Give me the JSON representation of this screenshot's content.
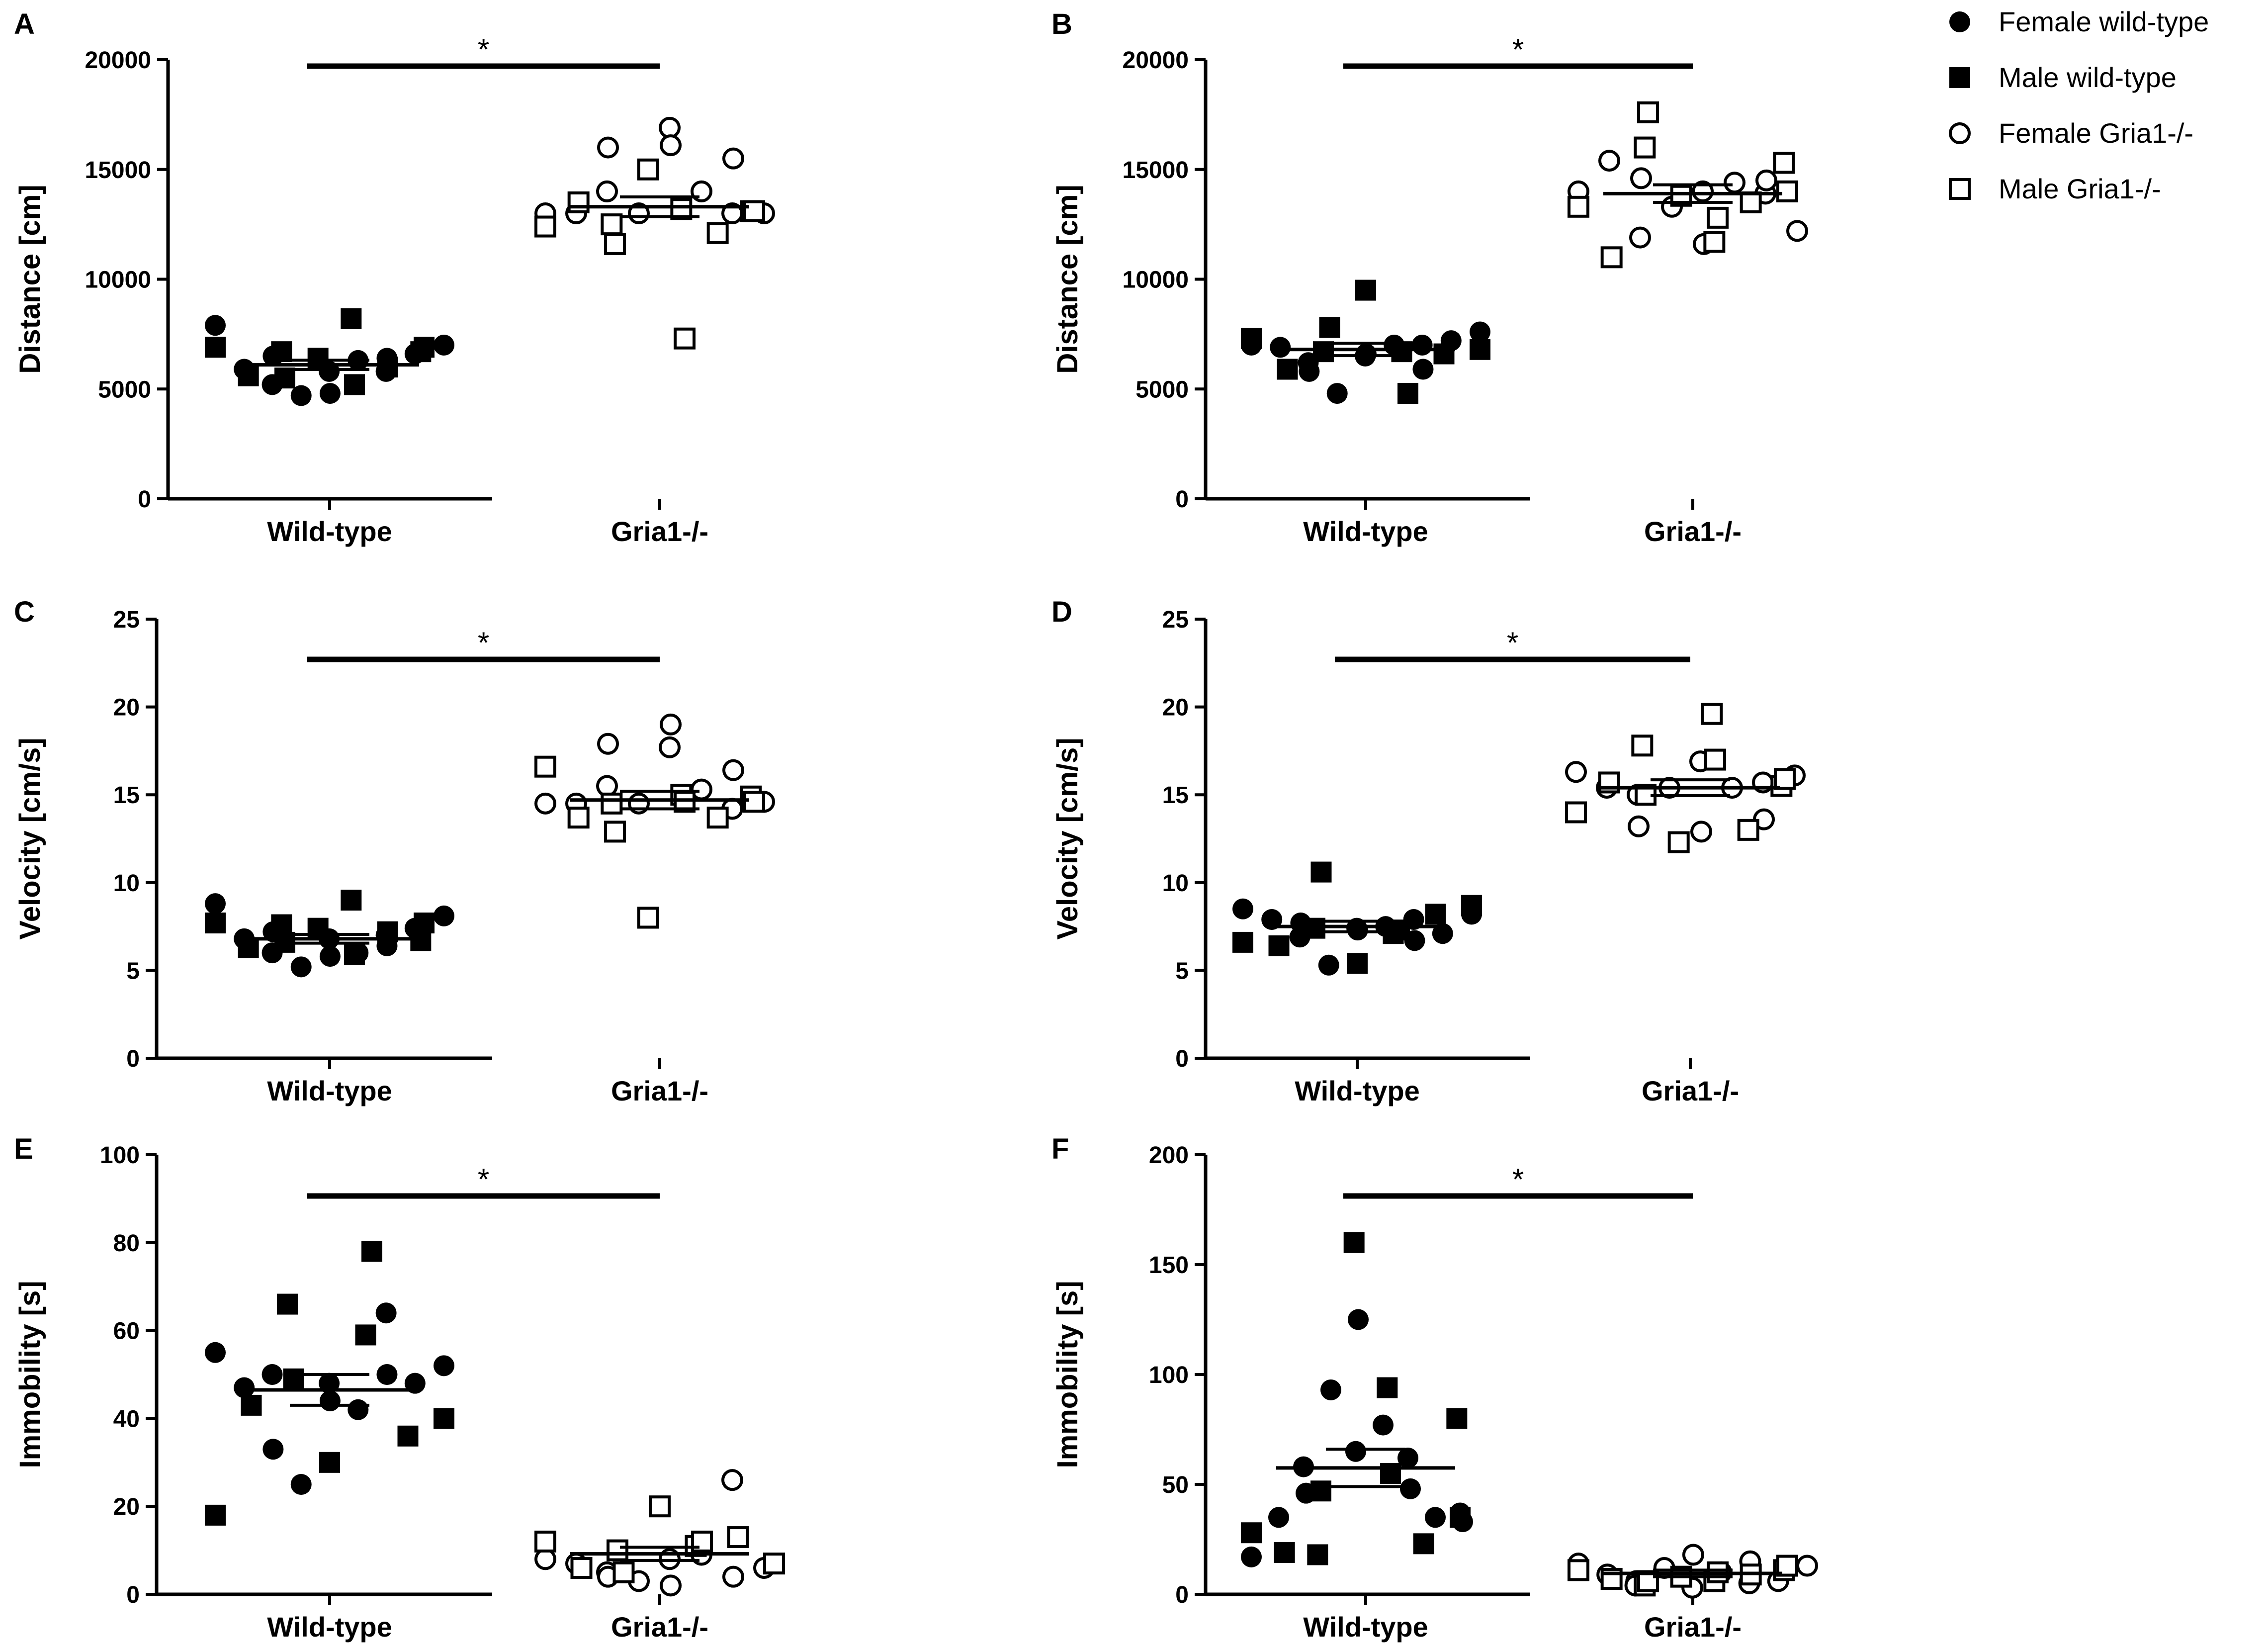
{
  "legend": {
    "items": [
      {
        "label": "Female wild-type",
        "marker": "circle",
        "filled": true
      },
      {
        "label": "Male wild-type",
        "marker": "square",
        "filled": true
      },
      {
        "label": "Female Gria1-/-",
        "marker": "circle",
        "filled": false
      },
      {
        "label": "Male Gria1-/-",
        "marker": "square",
        "filled": false
      }
    ]
  },
  "chart_data": [
    {
      "panel": "A",
      "type": "scatter",
      "ylabel": "Distance [cm]",
      "ylim": [
        0,
        20000
      ],
      "yticks": [
        0,
        5000,
        10000,
        15000,
        20000
      ],
      "yticklabels": [
        "0",
        "5000",
        "10000",
        "15000",
        "20000"
      ],
      "categories": [
        "Wild-type",
        "Gria1-/-"
      ],
      "significance": "*",
      "summary": [
        {
          "mean": 6100,
          "sem": 210
        },
        {
          "mean": 13300,
          "sem": 450
        }
      ],
      "series": [
        {
          "name": "Female wild-type",
          "group": 0,
          "values": [
            7900,
            5900,
            6500,
            5200,
            4700,
            4800,
            5800,
            6300,
            6400,
            5800,
            6600,
            7000
          ]
        },
        {
          "name": "Male wild-type",
          "group": 0,
          "values": [
            6900,
            5600,
            6700,
            5500,
            6400,
            8200,
            5200,
            6000,
            6700,
            6900
          ]
        },
        {
          "name": "Female Gria1-/-",
          "group": 1,
          "values": [
            13000,
            13000,
            14000,
            16000,
            13000,
            16900,
            16100,
            14000,
            13000,
            15500,
            13000
          ]
        },
        {
          "name": "Male Gria1-/-",
          "group": 1,
          "values": [
            12400,
            13500,
            12500,
            11600,
            15000,
            13200,
            7300,
            12100,
            13100,
            13100
          ]
        }
      ]
    },
    {
      "panel": "B",
      "type": "scatter",
      "ylabel": "Distance [cm]",
      "ylim": [
        0,
        20000
      ],
      "yticks": [
        0,
        5000,
        10000,
        15000,
        20000
      ],
      "yticklabels": [
        "0",
        "5000",
        "10000",
        "15000",
        "20000"
      ],
      "categories": [
        "Wild-type",
        "Gria1-/-"
      ],
      "significance": "*",
      "summary": [
        {
          "mean": 6800,
          "sem": 280
        },
        {
          "mean": 13900,
          "sem": 400
        }
      ],
      "series": [
        {
          "name": "Female wild-type",
          "group": 0,
          "values": [
            7000,
            6900,
            5800,
            6200,
            4800,
            6600,
            6500,
            7000,
            5900,
            7000,
            7200,
            7600
          ]
        },
        {
          "name": "Male wild-type",
          "group": 0,
          "values": [
            7300,
            5900,
            6700,
            7800,
            9500,
            6700,
            4800,
            6600,
            6800
          ]
        },
        {
          "name": "Female Gria1-/-",
          "group": 1,
          "values": [
            14000,
            15400,
            11900,
            14600,
            13300,
            14000,
            11600,
            14400,
            13900,
            14500,
            12200
          ]
        },
        {
          "name": "Male Gria1-/-",
          "group": 1,
          "values": [
            13300,
            11000,
            16000,
            17600,
            13800,
            11700,
            12800,
            13500,
            15300,
            14000
          ]
        }
      ]
    },
    {
      "panel": "C",
      "type": "scatter",
      "ylabel": "Velocity [cm/s]",
      "ylim": [
        0,
        25
      ],
      "yticks": [
        0,
        5,
        10,
        15,
        20,
        25
      ],
      "yticklabels": [
        "0",
        "5",
        "10",
        "15",
        "20",
        "25"
      ],
      "categories": [
        "Wild-type",
        "Gria1-/-"
      ],
      "significance": "*",
      "summary": [
        {
          "mean": 6.8,
          "sem": 0.25
        },
        {
          "mean": 14.7,
          "sem": 0.5
        }
      ],
      "series": [
        {
          "name": "Female wild-type",
          "group": 0,
          "values": [
            8.8,
            6.8,
            7.2,
            6.0,
            5.2,
            5.8,
            6.8,
            6.0,
            6.4,
            7.0,
            7.4,
            8.1
          ]
        },
        {
          "name": "Male wild-type",
          "group": 0,
          "values": [
            7.7,
            6.3,
            7.6,
            6.6,
            7.4,
            9.0,
            5.9,
            7.2,
            6.7,
            7.7
          ]
        },
        {
          "name": "Female Gria1-/-",
          "group": 1,
          "values": [
            14.5,
            14.5,
            15.5,
            17.9,
            14.5,
            17.7,
            19.0,
            15.3,
            14.2,
            16.4,
            14.6
          ]
        },
        {
          "name": "Male Gria1-/-",
          "group": 1,
          "values": [
            16.6,
            13.7,
            14.5,
            12.9,
            8.0,
            15.0,
            14.6,
            13.7,
            14.9,
            14.6
          ]
        }
      ]
    },
    {
      "panel": "D",
      "type": "scatter",
      "ylabel": "Velocity [cm/s]",
      "ylim": [
        0,
        25
      ],
      "yticks": [
        0,
        5,
        10,
        15,
        20,
        25
      ],
      "yticklabels": [
        "0",
        "5",
        "10",
        "15",
        "20",
        "25"
      ],
      "categories": [
        "Wild-type",
        "Gria1-/-"
      ],
      "significance": "*",
      "summary": [
        {
          "mean": 7.5,
          "sem": 0.3
        },
        {
          "mean": 15.4,
          "sem": 0.45
        }
      ],
      "series": [
        {
          "name": "Female wild-type",
          "group": 0,
          "values": [
            8.5,
            7.9,
            7.7,
            6.9,
            5.3,
            7.3,
            7.4,
            7.5,
            6.7,
            7.9,
            7.1,
            8.2
          ]
        },
        {
          "name": "Male wild-type",
          "group": 0,
          "values": [
            6.6,
            6.4,
            7.4,
            10.6,
            5.4,
            7.1,
            7.3,
            8.2,
            8.7
          ]
        },
        {
          "name": "Female Gria1-/-",
          "group": 1,
          "values": [
            16.3,
            15.4,
            15.0,
            13.2,
            15.4,
            16.9,
            12.9,
            15.4,
            15.7,
            13.6,
            16.1
          ]
        },
        {
          "name": "Male Gria1-/-",
          "group": 1,
          "values": [
            14.0,
            15.7,
            17.8,
            15.0,
            12.3,
            19.6,
            17.0,
            13.0,
            15.5,
            15.9
          ]
        }
      ]
    },
    {
      "panel": "E",
      "type": "scatter",
      "ylabel": "Immobility [s]",
      "ylim": [
        0,
        100
      ],
      "yticks": [
        0,
        20,
        40,
        60,
        80,
        100
      ],
      "yticklabels": [
        "0",
        "20",
        "40",
        "60",
        "80",
        "100"
      ],
      "categories": [
        "Wild-type",
        "Gria1-/-"
      ],
      "significance": "*",
      "summary": [
        {
          "mean": 46.5,
          "sem": 3.5
        },
        {
          "mean": 9.2,
          "sem": 1.5
        }
      ],
      "series": [
        {
          "name": "Female wild-type",
          "group": 0,
          "values": [
            55,
            47,
            33,
            50,
            25,
            44,
            48,
            42,
            50,
            64,
            48,
            52
          ]
        },
        {
          "name": "Male wild-type",
          "group": 0,
          "values": [
            18,
            43,
            66,
            49,
            30,
            59,
            78,
            36,
            40
          ]
        },
        {
          "name": "Female Gria1-/-",
          "group": 1,
          "values": [
            8,
            7,
            5,
            4,
            3,
            8,
            2,
            9,
            26,
            4,
            6
          ]
        },
        {
          "name": "Male Gria1-/-",
          "group": 1,
          "values": [
            12,
            6,
            10,
            5,
            20,
            11,
            12,
            13,
            7
          ]
        }
      ]
    },
    {
      "panel": "F",
      "type": "scatter",
      "ylabel": "Immobility [s]",
      "ylim": [
        0,
        200
      ],
      "yticks": [
        0,
        50,
        100,
        150,
        200
      ],
      "yticklabels": [
        "0",
        "50",
        "100",
        "150",
        "200"
      ],
      "categories": [
        "Wild-type",
        "Gria1-/-"
      ],
      "significance": "*",
      "summary": [
        {
          "mean": 57.5,
          "sem": 8.5
        },
        {
          "mean": 9.5,
          "sem": 1.5
        }
      ],
      "series": [
        {
          "name": "Female wild-type",
          "group": 0,
          "values": [
            17,
            35,
            46,
            58,
            93,
            125,
            65,
            77,
            48,
            62,
            35,
            33,
            37
          ]
        },
        {
          "name": "Male wild-type",
          "group": 0,
          "values": [
            28,
            19,
            18,
            47,
            160,
            94,
            55,
            23,
            80,
            35
          ]
        },
        {
          "name": "Female Gria1-/-",
          "group": 1,
          "values": [
            14,
            9,
            6,
            4,
            12,
            18,
            3,
            10,
            15,
            5,
            6,
            13
          ]
        },
        {
          "name": "Male Gria1-/-",
          "group": 1,
          "values": [
            11,
            7,
            4,
            6,
            8,
            6,
            10,
            9,
            11,
            13
          ]
        }
      ]
    }
  ]
}
